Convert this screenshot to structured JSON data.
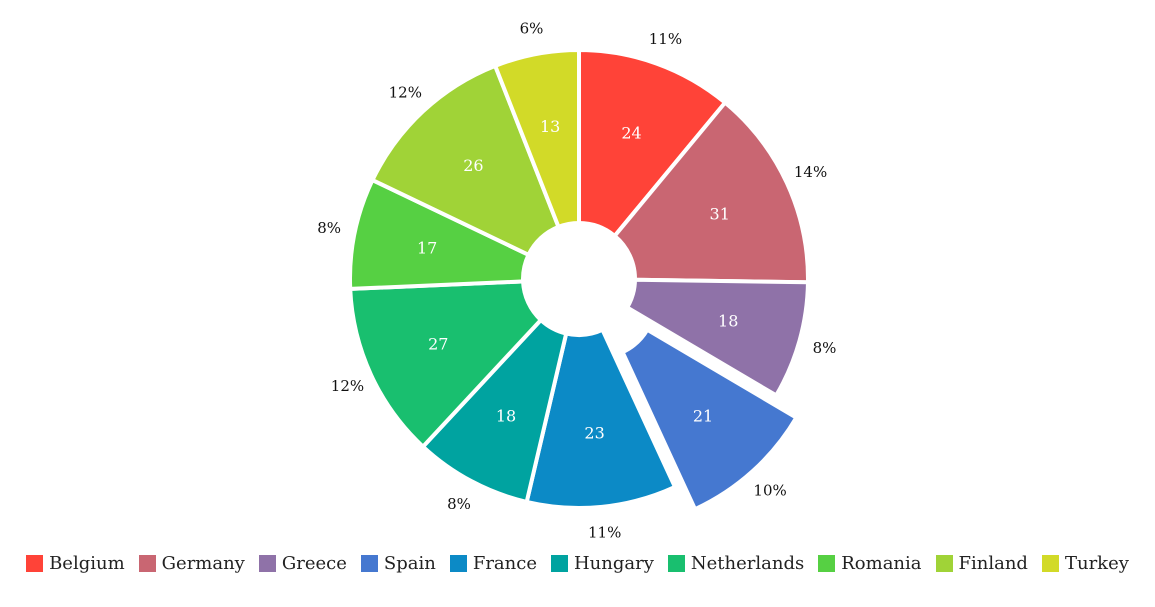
{
  "chart_data": {
    "type": "pie",
    "title": "",
    "legend_position": "bottom",
    "categories": [
      "Belgium",
      "Germany",
      "Greece",
      "Spain",
      "France",
      "Hungary",
      "Netherlands",
      "Romania",
      "Finland",
      "Turkey"
    ],
    "values": [
      24,
      31,
      18,
      21,
      23,
      18,
      27,
      17,
      26,
      13
    ],
    "percent_labels": [
      "11%",
      "14%",
      "8%",
      "10%",
      "11%",
      "8%",
      "12%",
      "8%",
      "12%",
      "6%"
    ],
    "colors": [
      "#ff4338",
      "#c96672",
      "#8f72a8",
      "#4578d0",
      "#0c8ac6",
      "#00a3a0",
      "#19bf6f",
      "#56d043",
      "#a0d337",
      "#d2da28"
    ],
    "exploded_category": "Spain",
    "donut_hole": true
  }
}
